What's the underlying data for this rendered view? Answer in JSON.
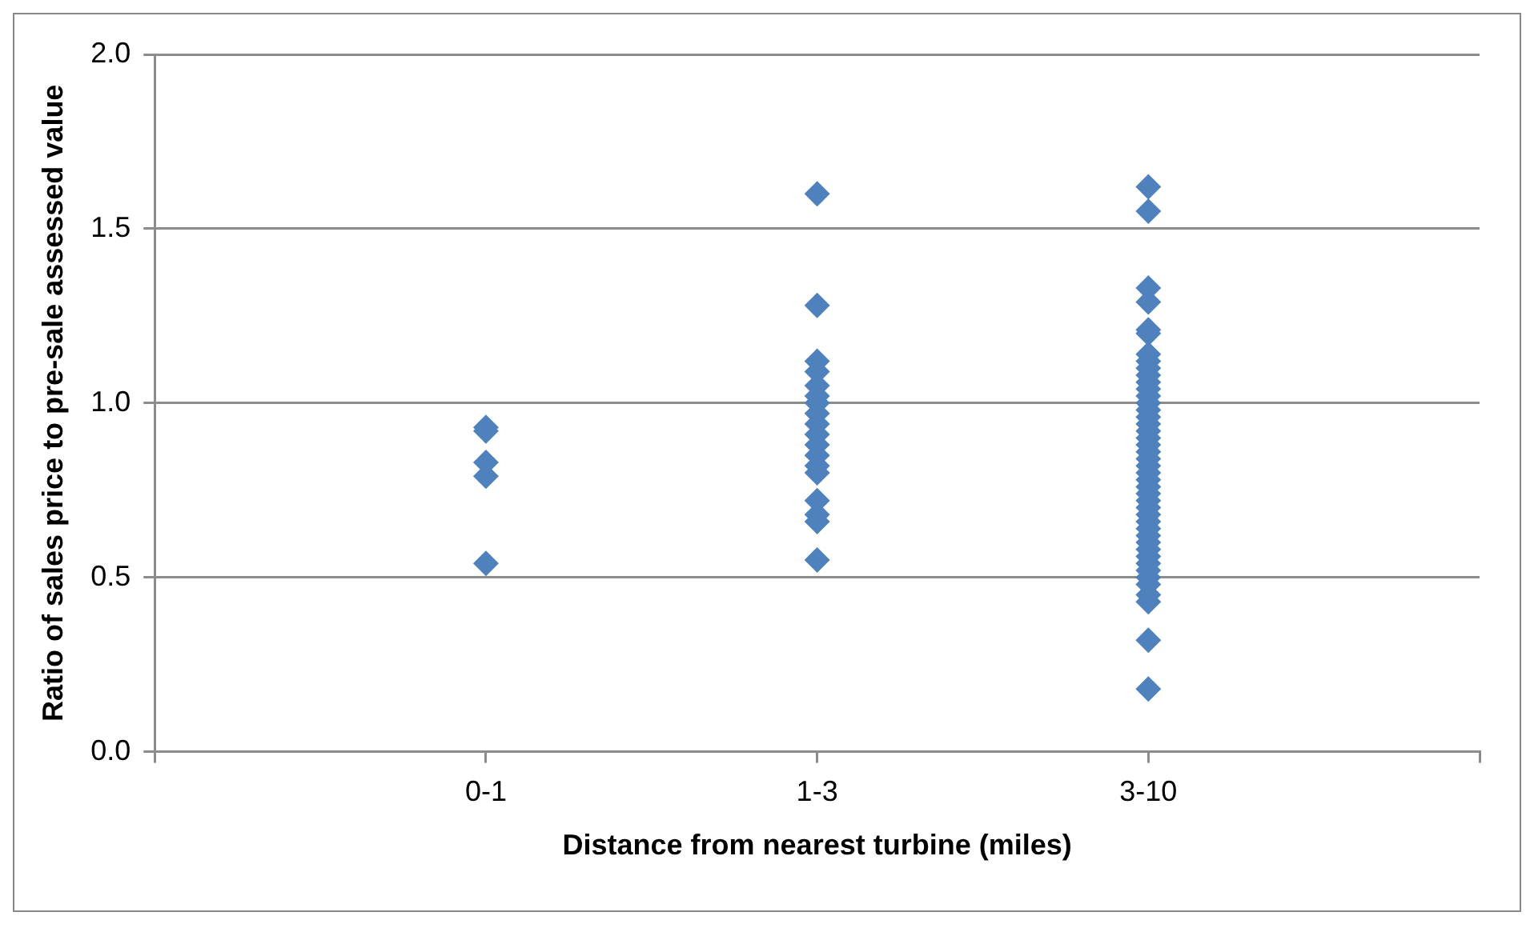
{
  "chart_data": {
    "type": "scatter",
    "xlabel": "Distance from nearest turbine (miles)",
    "ylabel": "Ratio of sales price to pre-sale assessed value",
    "categories": [
      null,
      "0-1",
      "1-3",
      "3-10",
      null
    ],
    "ylim": [
      0,
      2
    ],
    "yticks": [
      {
        "value": 0,
        "label": "0.0"
      },
      {
        "value": 0.5,
        "label": "0.5"
      },
      {
        "value": 1,
        "label": "1.0"
      },
      {
        "value": 1.5,
        "label": "1.5"
      },
      {
        "value": 2,
        "label": "2.0"
      }
    ],
    "grid": "y",
    "marker": "diamond",
    "legend": false,
    "series": [
      {
        "color": "#4f81bd",
        "x": [
          "0-1",
          "0-1",
          "0-1",
          "0-1",
          "0-1",
          "1-3",
          "1-3",
          "1-3",
          "1-3",
          "1-3",
          "1-3",
          "1-3",
          "1-3",
          "1-3",
          "1-3",
          "1-3",
          "1-3",
          "1-3",
          "1-3",
          "1-3",
          "1-3",
          "1-3",
          "1-3",
          "3-10",
          "3-10",
          "3-10",
          "3-10",
          "3-10",
          "3-10",
          "3-10",
          "3-10",
          "3-10",
          "3-10",
          "3-10",
          "3-10",
          "3-10",
          "3-10",
          "3-10",
          "3-10",
          "3-10",
          "3-10",
          "3-10",
          "3-10",
          "3-10",
          "3-10",
          "3-10",
          "3-10",
          "3-10",
          "3-10",
          "3-10",
          "3-10",
          "3-10",
          "3-10",
          "3-10",
          "3-10",
          "3-10",
          "3-10",
          "3-10",
          "3-10",
          "3-10",
          "3-10",
          "3-10",
          "3-10",
          "3-10",
          "3-10",
          "3-10",
          "3-10"
        ],
        "values": [
          0.93,
          0.92,
          0.83,
          0.79,
          0.54,
          1.6,
          1.28,
          1.12,
          1.09,
          1.05,
          1.02,
          1.0,
          0.97,
          0.94,
          0.91,
          0.88,
          0.85,
          0.82,
          0.8,
          0.72,
          0.68,
          0.66,
          0.55,
          1.62,
          1.55,
          1.33,
          1.29,
          1.21,
          1.2,
          1.14,
          1.12,
          1.1,
          1.08,
          1.06,
          1.04,
          1.02,
          1.0,
          0.98,
          0.96,
          0.94,
          0.92,
          0.9,
          0.88,
          0.86,
          0.84,
          0.82,
          0.8,
          0.78,
          0.76,
          0.74,
          0.72,
          0.7,
          0.68,
          0.66,
          0.64,
          0.62,
          0.6,
          0.58,
          0.56,
          0.54,
          0.52,
          0.5,
          0.48,
          0.45,
          0.43,
          0.32,
          0.18
        ]
      }
    ]
  }
}
